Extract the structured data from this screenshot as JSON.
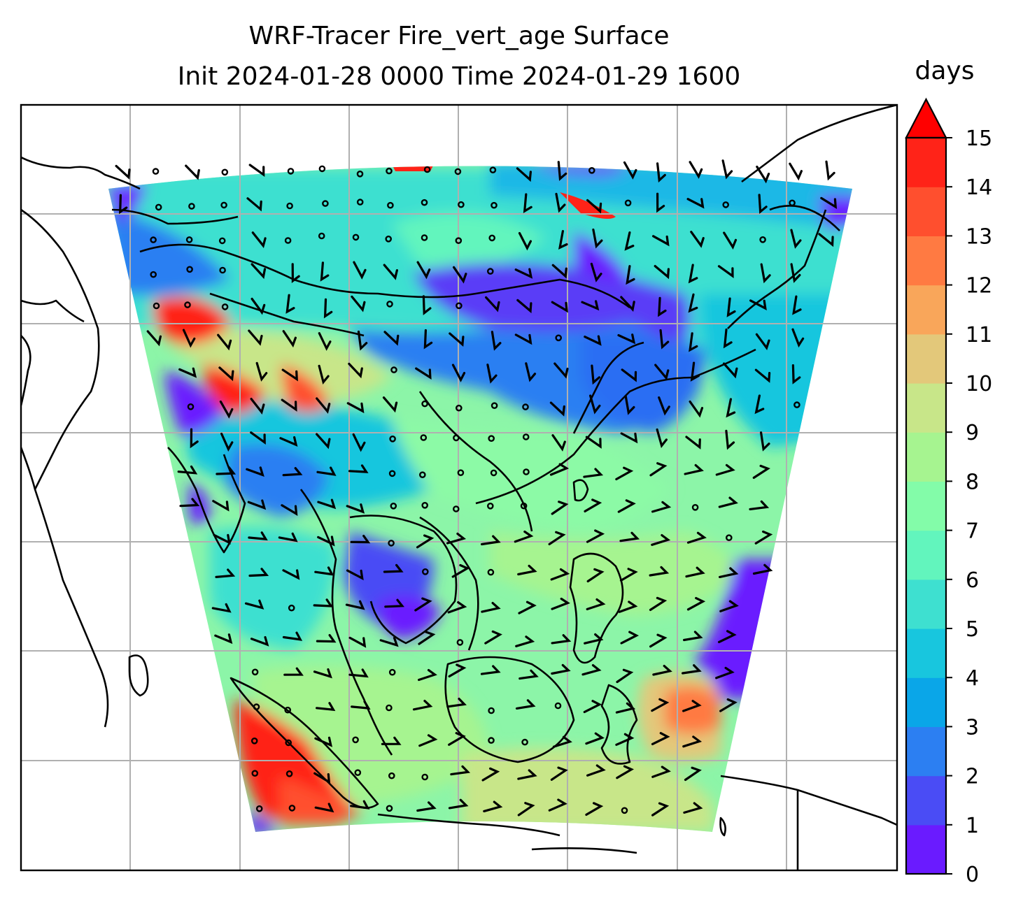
{
  "title": {
    "line1": "WRF-Tracer Fire_vert_age Surface",
    "line2": "Init 2024-01-28 0000 Time 2024-01-29 1600"
  },
  "colorbar": {
    "label": "days",
    "min": 0,
    "max": 15,
    "extend": "max",
    "ticks": [
      "0",
      "1",
      "2",
      "3",
      "4",
      "5",
      "6",
      "7",
      "8",
      "9",
      "10",
      "11",
      "12",
      "13",
      "14",
      "15"
    ],
    "colors": [
      "#6a1bff",
      "#4a4cf5",
      "#2c7ff2",
      "#0aa6e8",
      "#18c6de",
      "#3ee0d0",
      "#62f5bd",
      "#83fca9",
      "#a6f490",
      "#c8e689",
      "#e3c87a",
      "#f9a65a",
      "#ff7a42",
      "#ff4f2e",
      "#ff2318"
    ],
    "extend_color": "#ff0000"
  },
  "map": {
    "features": [
      "coastlines",
      "country borders",
      "gridlines",
      "wind barbs"
    ],
    "gridlines": true
  }
}
